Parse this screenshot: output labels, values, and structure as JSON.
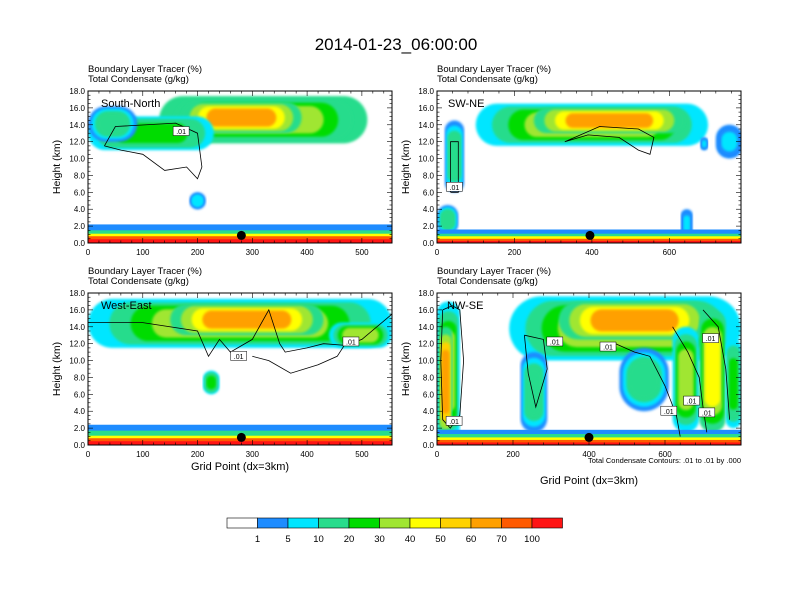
{
  "title": "2014-01-23_06:00:00",
  "colors": {
    "bins": [
      "#ffffff",
      "#1e8cff",
      "#00e6ff",
      "#28dc8c",
      "#00dc00",
      "#a0e632",
      "#ffff00",
      "#ffd200",
      "#ffa000",
      "#ff5a00",
      "#ff1414"
    ],
    "contour": "#000000",
    "marker": "#000000"
  },
  "colorbar": {
    "labels": [
      "1",
      "5",
      "10",
      "20",
      "30",
      "40",
      "50",
      "60",
      "70",
      "100"
    ]
  },
  "chart_data": [
    {
      "type": "heatmap",
      "panel_label": "South-North",
      "title_line1": "Boundary Layer Tracer   (%)",
      "title_line2": "Total Condensate   (g/kg)",
      "ylabel": "Height (km)",
      "xlabel": "",
      "xlim": [
        0,
        555
      ],
      "ylim": [
        0,
        18
      ],
      "xticks": [
        "0",
        "100",
        "200",
        "300",
        "400",
        "500"
      ],
      "yticks": [
        "0.0",
        "2.0",
        "4.0",
        "6.0",
        "8.0",
        "10.0",
        "12.0",
        "14.0",
        "16.0",
        "18.0"
      ],
      "contour_labels": [
        ".01"
      ],
      "contour_label_positions": [
        [
          170,
          13.2
        ]
      ],
      "marker_x": 280,
      "blobs": [
        {
          "x0": 130,
          "x1": 510,
          "z0": 11.8,
          "z1": 17.4,
          "v": 35
        },
        {
          "x0": 170,
          "x1": 390,
          "z0": 13.0,
          "z1": 16.7,
          "v": 60
        },
        {
          "x0": 0,
          "x1": 230,
          "z0": 11.0,
          "z1": 15.0,
          "v": 20
        },
        {
          "x0": 0,
          "x1": 90,
          "z0": 12.0,
          "z1": 16.2,
          "v": 15
        },
        {
          "x0": 185,
          "x1": 215,
          "z0": 4.0,
          "z1": 6.0,
          "v": 8
        }
      ],
      "boundary_layer": [
        {
          "z1": 2.2,
          "v": 4
        },
        {
          "z1": 1.5,
          "v": 12
        },
        {
          "z1": 1.1,
          "v": 45
        },
        {
          "z1": 0.8,
          "v": 70
        },
        {
          "z1": 0.45,
          "v": 100
        }
      ],
      "contours": [
        [
          [
            30,
            11.5
          ],
          [
            50,
            13.8
          ],
          [
            160,
            14.2
          ],
          [
            200,
            13.0
          ],
          [
            208,
            9.0
          ],
          [
            200,
            7.6
          ],
          [
            180,
            9.0
          ],
          [
            140,
            8.6
          ],
          [
            100,
            10.5
          ],
          [
            60,
            11.0
          ],
          [
            30,
            11.5
          ]
        ]
      ]
    },
    {
      "type": "heatmap",
      "panel_label": "SW-NE",
      "title_line1": "Boundary Layer Tracer   (%)",
      "title_line2": "Total Condensate   (g/kg)",
      "ylabel": "Height (km)",
      "xlabel": "",
      "xlim": [
        0,
        785
      ],
      "ylim": [
        0,
        18
      ],
      "xticks": [
        "0",
        "200",
        "400",
        "600"
      ],
      "yticks": [
        "0.0",
        "2.0",
        "4.0",
        "6.0",
        "8.0",
        "10.0",
        "12.0",
        "14.0",
        "16.0",
        "18.0"
      ],
      "contour_labels": [
        ".01"
      ],
      "contour_label_positions": [
        [
          45,
          6.6
        ]
      ],
      "marker_x": 395,
      "blobs": [
        {
          "x0": 100,
          "x1": 700,
          "z0": 11.5,
          "z1": 16.5,
          "v": 30
        },
        {
          "x0": 250,
          "x1": 640,
          "z0": 13.0,
          "z1": 16.0,
          "v": 60
        },
        {
          "x0": 20,
          "x1": 70,
          "z0": 6.0,
          "z1": 14.5,
          "v": 15
        },
        {
          "x0": 0,
          "x1": 55,
          "z0": 1.0,
          "z1": 4.5,
          "v": 15
        },
        {
          "x0": 630,
          "x1": 660,
          "z0": 0.5,
          "z1": 4.0,
          "v": 6
        },
        {
          "x0": 680,
          "x1": 700,
          "z0": 11.0,
          "z1": 12.5,
          "v": 6
        },
        {
          "x0": 720,
          "x1": 790,
          "z0": 10.0,
          "z1": 14.0,
          "v": 6
        }
      ],
      "boundary_layer": [
        {
          "z1": 1.6,
          "v": 4
        },
        {
          "z1": 1.1,
          "v": 12
        },
        {
          "z1": 0.8,
          "v": 45
        },
        {
          "z1": 0.5,
          "v": 70
        },
        {
          "z1": 0.25,
          "v": 100
        }
      ],
      "contours": [
        [
          [
            330,
            12.0
          ],
          [
            390,
            12.8
          ],
          [
            470,
            12.5
          ],
          [
            520,
            11.0
          ],
          [
            550,
            10.5
          ],
          [
            560,
            12.5
          ],
          [
            520,
            13.5
          ],
          [
            420,
            13.8
          ],
          [
            330,
            12.0
          ]
        ],
        [
          [
            35,
            6.0
          ],
          [
            35,
            12.0
          ],
          [
            55,
            12.0
          ],
          [
            55,
            6.0
          ],
          [
            35,
            6.0
          ]
        ]
      ]
    },
    {
      "type": "heatmap",
      "panel_label": "West-East",
      "title_line1": "Boundary Layer Tracer   (%)",
      "title_line2": "Total Condensate   (g/kg)",
      "ylabel": "Height (km)",
      "xlabel": "Grid Point (dx=3km)",
      "xlim": [
        0,
        555
      ],
      "ylim": [
        0,
        18
      ],
      "xticks": [
        "0",
        "100",
        "200",
        "300",
        "400",
        "500"
      ],
      "yticks": [
        "0.0",
        "2.0",
        "4.0",
        "6.0",
        "8.0",
        "10.0",
        "12.0",
        "14.0",
        "16.0",
        "18.0"
      ],
      "contour_labels": [
        ".01",
        ".01"
      ],
      "contour_label_positions": [
        [
          275,
          10.5
        ],
        [
          480,
          12.2
        ]
      ],
      "marker_x": 280,
      "blobs": [
        {
          "x0": 0,
          "x1": 555,
          "z0": 11.5,
          "z1": 17.3,
          "v": 30
        },
        {
          "x0": 150,
          "x1": 430,
          "z0": 13.0,
          "z1": 16.7,
          "v": 60
        },
        {
          "x0": 440,
          "x1": 555,
          "z0": 11.5,
          "z1": 14.5,
          "v": 30
        },
        {
          "x0": 210,
          "x1": 240,
          "z0": 6.0,
          "z1": 8.8,
          "v": 22
        }
      ],
      "boundary_layer": [
        {
          "z1": 2.4,
          "v": 4
        },
        {
          "z1": 1.7,
          "v": 12
        },
        {
          "z1": 1.1,
          "v": 45
        },
        {
          "z1": 0.8,
          "v": 70
        },
        {
          "z1": 0.45,
          "v": 100
        }
      ],
      "contours": [
        [
          [
            0,
            14.5
          ],
          [
            100,
            14.5
          ],
          [
            200,
            13.5
          ],
          [
            220,
            10.5
          ],
          [
            240,
            12.5
          ],
          [
            260,
            11.0
          ],
          [
            300,
            12.5
          ],
          [
            330,
            16.0
          ],
          [
            350,
            12.0
          ],
          [
            360,
            11.0
          ],
          [
            400,
            11.5
          ],
          [
            430,
            12.0
          ],
          [
            470,
            11.8
          ],
          [
            500,
            12.5
          ],
          [
            555,
            15.5
          ]
        ],
        [
          [
            300,
            10.5
          ],
          [
            330,
            10.0
          ],
          [
            370,
            8.5
          ],
          [
            420,
            9.5
          ],
          [
            455,
            10.5
          ],
          [
            470,
            12.0
          ]
        ]
      ]
    },
    {
      "type": "heatmap",
      "panel_label": "NW-SE",
      "title_line1": "Boundary Layer Tracer   (%)",
      "title_line2": "Total Condensate   (g/kg)",
      "ylabel": "Height (km)",
      "xlabel": "Grid Point (dx=3km)",
      "xlim": [
        0,
        800
      ],
      "ylim": [
        0,
        18
      ],
      "xticks": [
        "0",
        "200",
        "400",
        "600"
      ],
      "yticks": [
        "0.0",
        "2.0",
        "4.0",
        "6.0",
        "8.0",
        "10.0",
        "12.0",
        "14.0",
        "16.0",
        "18.0"
      ],
      "contour_labels": [
        ".01",
        ".01",
        ".01",
        ".01",
        ".01",
        ".01",
        ".01"
      ],
      "contour_label_positions": [
        [
          45,
          2.8
        ],
        [
          310,
          12.2
        ],
        [
          450,
          11.6
        ],
        [
          720,
          12.6
        ],
        [
          610,
          4.0
        ],
        [
          670,
          5.2
        ],
        [
          710,
          3.8
        ]
      ],
      "marker_x": 400,
      "footnote": "Total Condensate Contours: .01 to .01 by .000",
      "blobs": [
        {
          "x0": 190,
          "x1": 800,
          "z0": 10.0,
          "z1": 17.6,
          "v": 30
        },
        {
          "x0": 320,
          "x1": 720,
          "z0": 12.5,
          "z1": 17.0,
          "v": 60
        },
        {
          "x0": 0,
          "x1": 60,
          "z0": 0.5,
          "z1": 17.0,
          "v": 30
        },
        {
          "x0": 5,
          "x1": 40,
          "z0": 1.0,
          "z1": 14.0,
          "v": 65
        },
        {
          "x0": 220,
          "x1": 290,
          "z0": 1.5,
          "z1": 11.0,
          "v": 15
        },
        {
          "x0": 480,
          "x1": 610,
          "z0": 4.0,
          "z1": 11.5,
          "v": 15
        },
        {
          "x0": 620,
          "x1": 690,
          "z0": 1.5,
          "z1": 14.0,
          "v": 30
        },
        {
          "x0": 690,
          "x1": 760,
          "z0": 1.5,
          "z1": 16.0,
          "v": 45
        },
        {
          "x0": 760,
          "x1": 800,
          "z0": 2.0,
          "z1": 12.5,
          "v": 20
        }
      ],
      "boundary_layer": [
        {
          "z1": 1.8,
          "v": 4
        },
        {
          "z1": 1.3,
          "v": 12
        },
        {
          "z1": 0.9,
          "v": 45
        },
        {
          "z1": 0.6,
          "v": 70
        },
        {
          "z1": 0.3,
          "v": 100
        }
      ],
      "contours": [
        [
          [
            15,
            16.0
          ],
          [
            40,
            16.5
          ],
          [
            60,
            16.0
          ],
          [
            70,
            10.0
          ],
          [
            60,
            3.5
          ],
          [
            35,
            2.0
          ],
          [
            15,
            3.0
          ],
          [
            10,
            10.0
          ],
          [
            15,
            16.0
          ]
        ],
        [
          [
            230,
            13.0
          ],
          [
            280,
            12.5
          ],
          [
            290,
            9.0
          ],
          [
            260,
            4.5
          ],
          [
            240,
            8.5
          ],
          [
            230,
            13.0
          ]
        ],
        [
          [
            470,
            12.0
          ],
          [
            520,
            11.0
          ],
          [
            560,
            10.5
          ],
          [
            600,
            7.0
          ],
          [
            630,
            3.5
          ],
          [
            640,
            1.0
          ]
        ],
        [
          [
            620,
            14.0
          ],
          [
            660,
            11.0
          ],
          [
            690,
            8.0
          ],
          [
            700,
            4.5
          ],
          [
            710,
            1.5
          ]
        ],
        [
          [
            700,
            16.0
          ],
          [
            740,
            14.0
          ],
          [
            760,
            9.0
          ],
          [
            770,
            3.0
          ]
        ]
      ]
    }
  ]
}
